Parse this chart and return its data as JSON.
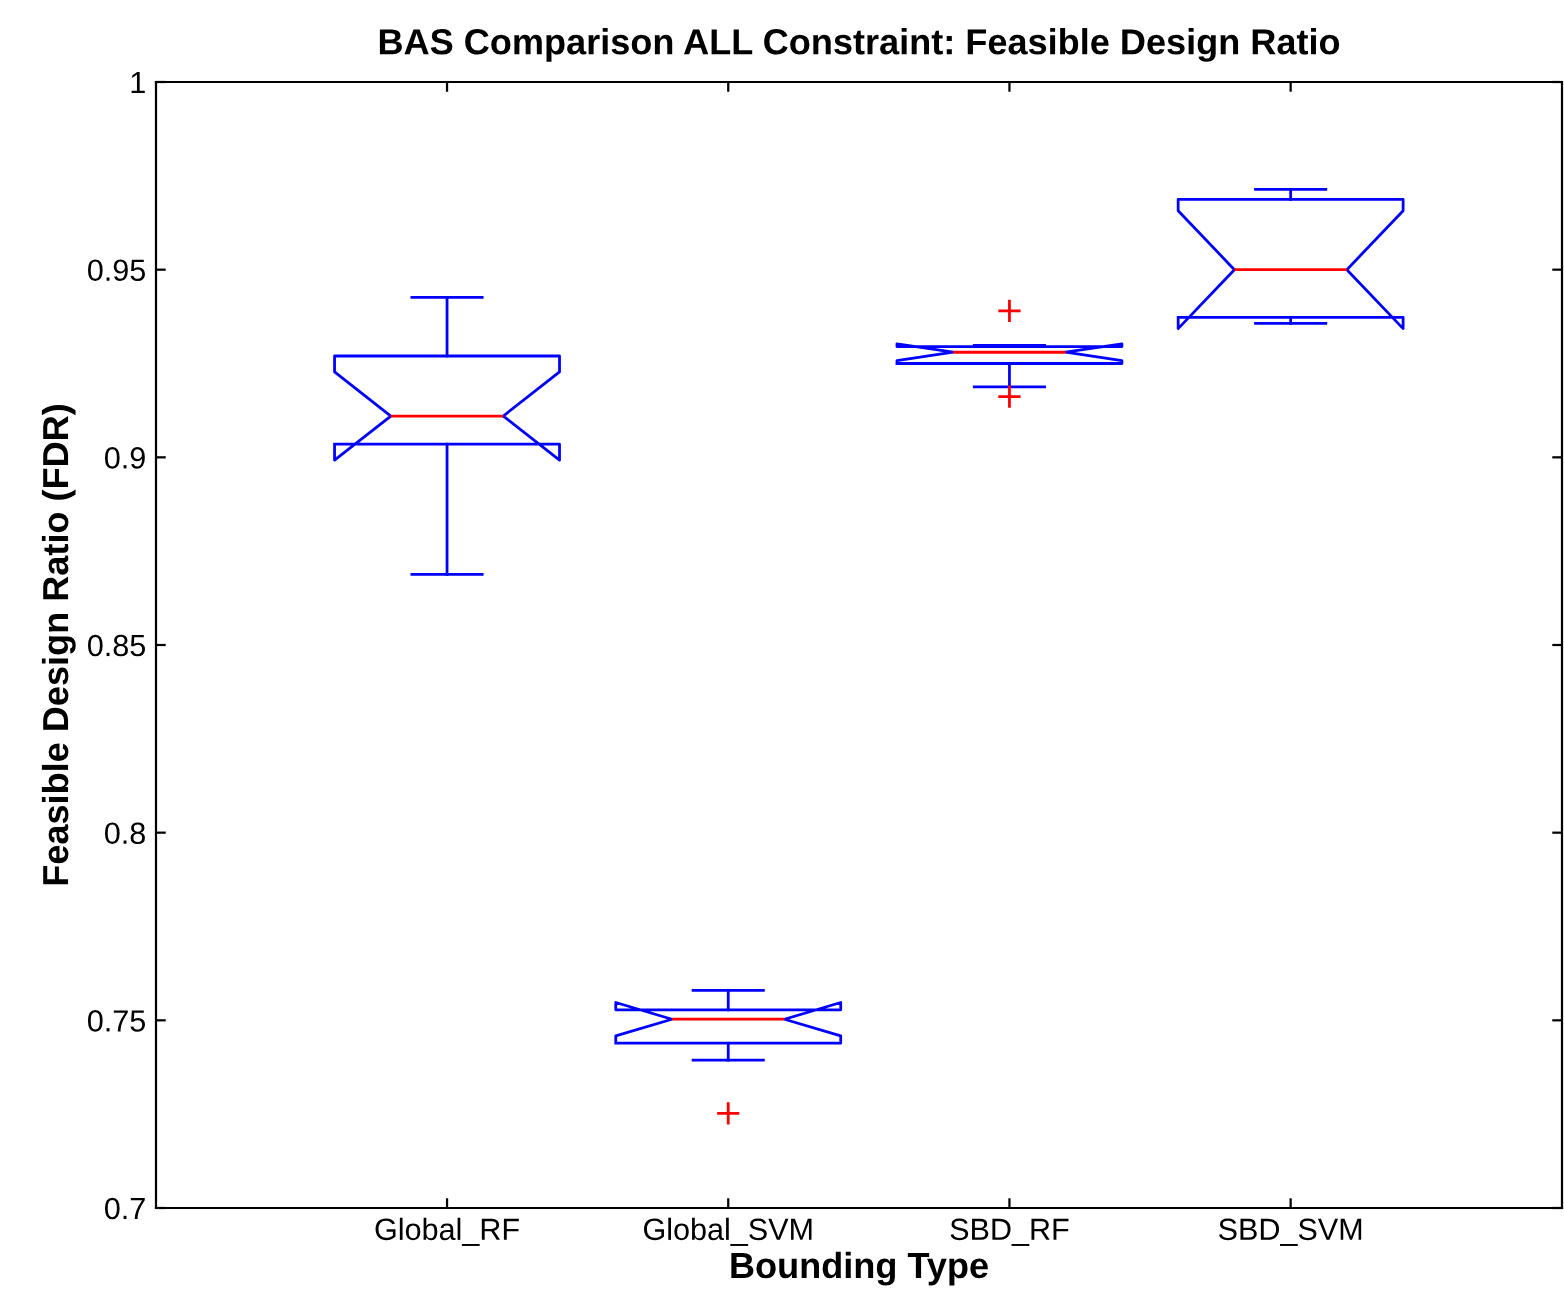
{
  "chart_data": {
    "type": "box",
    "title": "BAS Comparison ALL Constraint: Feasible Design Ratio",
    "xlabel": "Bounding Type",
    "ylabel": "Feasible Design Ratio (FDR)",
    "categories": [
      "Global_RF",
      "Global_SVM",
      "SBD_RF",
      "SBD_SVM"
    ],
    "boxes": [
      {
        "low": 0.8688,
        "q1": 0.9035,
        "median": 0.911,
        "q3": 0.927,
        "high": 0.9426
      },
      {
        "low": 0.7394,
        "q1": 0.7439,
        "median": 0.7503,
        "q3": 0.7528,
        "high": 0.758,
        "outliers": [
          0.7252
        ]
      },
      {
        "low": 0.9188,
        "q1": 0.925,
        "median": 0.928,
        "q3": 0.9295,
        "high": 0.9298,
        "outliers": [
          0.939,
          0.9162
        ]
      },
      {
        "low": 0.9357,
        "q1": 0.9373,
        "median": 0.95,
        "q3": 0.9687,
        "high": 0.9714
      }
    ],
    "color": "#0000ff",
    "ylim": [
      0.7,
      1
    ],
    "yticks": [
      0.7,
      0.75,
      0.8,
      0.85,
      0.9,
      0.95,
      1
    ],
    "grid": false,
    "legend": false
  }
}
